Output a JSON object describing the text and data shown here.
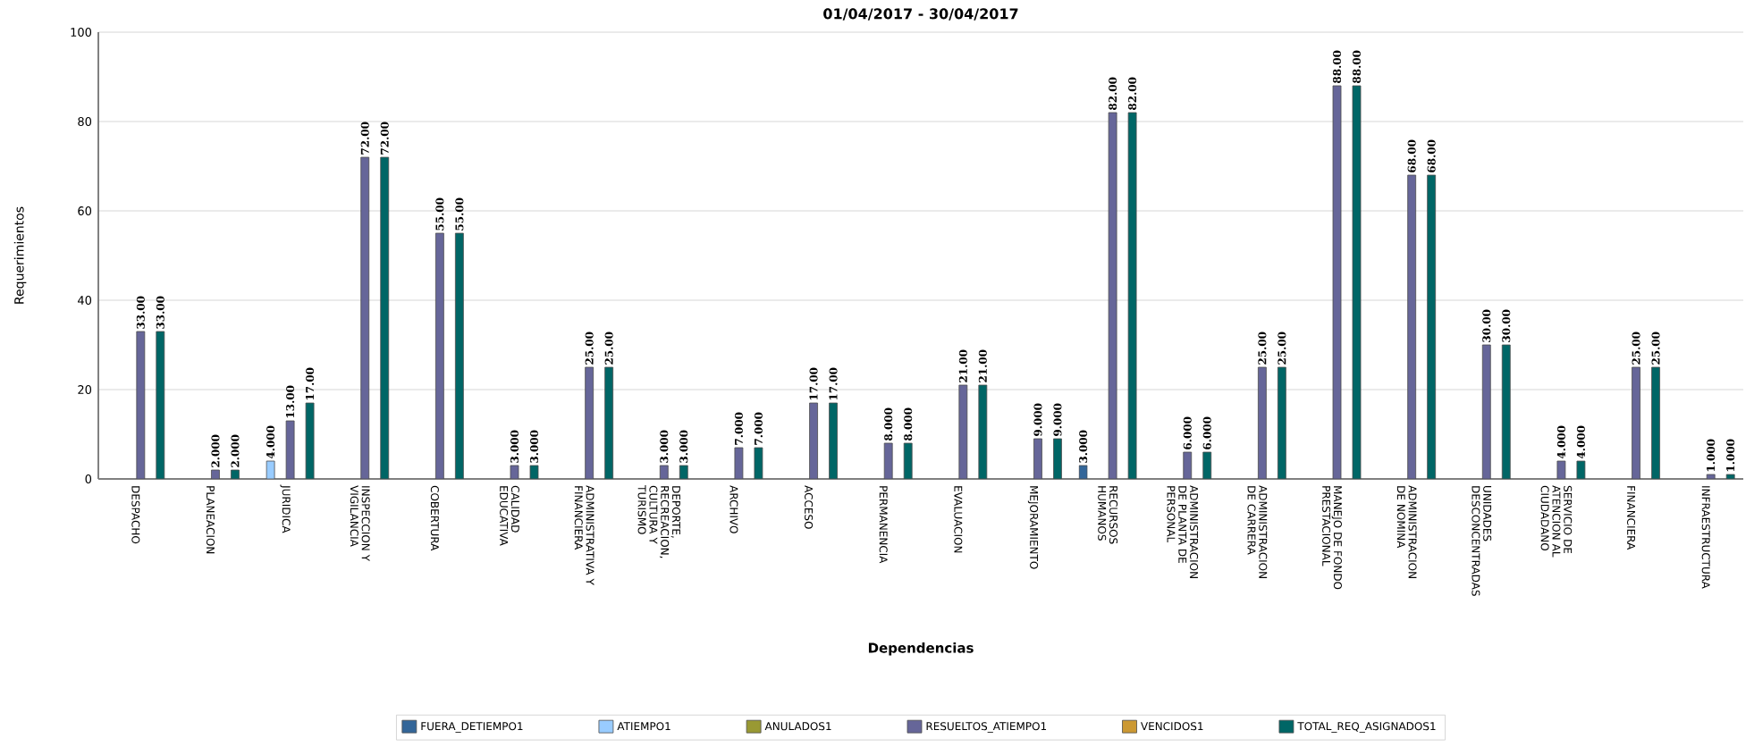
{
  "chart_data": {
    "type": "bar",
    "title": "01/04/2017 - 30/04/2017",
    "xlabel": "Dependencias",
    "ylabel": "Requerimientos",
    "categories": [
      "DESPACHO",
      "PLANEACION",
      "JURIDICA",
      "INSPECCION Y VIGILANCIA",
      "COBERTURA",
      "CALIDAD EDUCATIVA",
      "ADMINISTRATIVA Y FINANCIERA",
      "DEPORTE, RECREACION, CULTURA Y TURISMO",
      "ARCHIVO",
      "ACCESO",
      "PERMANENCIA",
      "EVALUACION",
      "MEJORAMIENTO",
      "RECURSOS HUMANOS",
      "ADMINISTRACION DE PLANTA DE PERSONAL",
      "ADMINISTRACION DE CARRERA",
      "MANEJO DE FONDO PRESTACIONAL",
      "ADMINISTRACION DE NOMINA",
      "UNIDADES DESCONCENTRADAS",
      "SERVICIO DE ATENCION AL CIUDADANO",
      "FINANCIERA",
      "INFRAESTRUCTURA"
    ],
    "series": [
      {
        "name": "FUERA_DETIEMPO1",
        "color": "#336699",
        "values": [
          null,
          null,
          null,
          null,
          null,
          null,
          null,
          null,
          null,
          null,
          null,
          null,
          null,
          3,
          null,
          null,
          null,
          null,
          null,
          null,
          null,
          null
        ],
        "value_labels": [
          null,
          null,
          null,
          null,
          null,
          null,
          null,
          null,
          null,
          null,
          null,
          null,
          null,
          "3.000",
          null,
          null,
          null,
          null,
          null,
          null,
          null,
          null
        ]
      },
      {
        "name": "ATIEMPO1",
        "color": "#99ccff",
        "values": [
          null,
          null,
          4,
          null,
          null,
          null,
          null,
          null,
          null,
          null,
          null,
          null,
          null,
          null,
          null,
          null,
          null,
          null,
          null,
          null,
          null,
          null
        ],
        "value_labels": [
          null,
          null,
          "4.000",
          null,
          null,
          null,
          null,
          null,
          null,
          null,
          null,
          null,
          null,
          null,
          null,
          null,
          null,
          null,
          null,
          null,
          null,
          null
        ]
      },
      {
        "name": "ANULADOS1",
        "color": "#999933",
        "values": [
          null,
          null,
          null,
          null,
          null,
          null,
          null,
          null,
          null,
          null,
          null,
          null,
          null,
          null,
          null,
          null,
          null,
          null,
          null,
          null,
          null,
          null
        ]
      },
      {
        "name": "RESUELTOS_ATIEMPO1",
        "color": "#666699",
        "values": [
          33,
          2,
          13,
          72,
          55,
          3,
          25,
          3,
          7,
          17,
          8,
          21,
          9,
          82,
          6,
          25,
          88,
          68,
          30,
          4,
          25,
          1
        ],
        "value_labels": [
          "33.00",
          "2.000",
          "13.00",
          "72.00",
          "55.00",
          "3.000",
          "25.00",
          "3.000",
          "7.000",
          "17.00",
          "8.000",
          "21.00",
          "9.000",
          "82.00",
          "6.000",
          "25.00",
          "88.00",
          "68.00",
          "30.00",
          "4.000",
          "25.00",
          "1.000"
        ]
      },
      {
        "name": "VENCIDOS1",
        "color": "#cc9933",
        "values": [
          null,
          null,
          null,
          null,
          null,
          null,
          null,
          null,
          null,
          null,
          null,
          null,
          null,
          null,
          null,
          null,
          null,
          null,
          null,
          null,
          null,
          null
        ]
      },
      {
        "name": "TOTAL_REQ_ASIGNADOS1",
        "color": "#006666",
        "values": [
          33,
          2,
          17,
          72,
          55,
          3,
          25,
          3,
          7,
          17,
          8,
          21,
          9,
          82,
          6,
          25,
          88,
          68,
          30,
          4,
          25,
          1
        ],
        "value_labels": [
          "33.00",
          "2.000",
          "17.00",
          "72.00",
          "55.00",
          "3.000",
          "25.00",
          "3.000",
          "7.000",
          "17.00",
          "8.000",
          "21.00",
          "9.000",
          "82.00",
          "6.000",
          "25.00",
          "88.00",
          "68.00",
          "30.00",
          "4.000",
          "25.00",
          "1.000"
        ]
      }
    ],
    "ylim": [
      0,
      100
    ],
    "yticks": [
      0,
      20,
      40,
      60,
      80,
      100
    ],
    "grid": "y",
    "legend": "bottom"
  }
}
